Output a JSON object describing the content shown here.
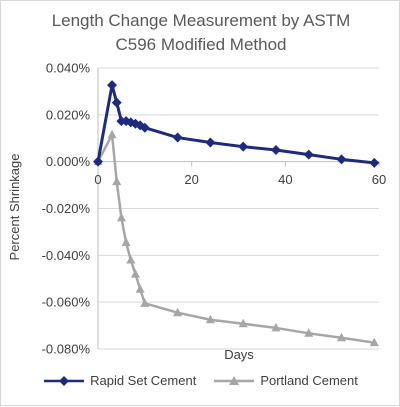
{
  "chart_data": {
    "type": "line",
    "title_lines": [
      "Length Change Measurement by ASTM",
      "C596 Modified Method"
    ],
    "xlabel": "Days",
    "ylabel": "Percent Shrinkage",
    "xlim": [
      0,
      60
    ],
    "ylim": [
      -0.08,
      0.04
    ],
    "x_ticks": [
      0,
      20,
      40,
      60
    ],
    "x_tick_labels": [
      "0",
      "20",
      "40",
      "60"
    ],
    "y_ticks": [
      0.04,
      0.02,
      0.0,
      -0.02,
      -0.04,
      -0.06,
      -0.08
    ],
    "y_tick_labels": [
      "0.040%",
      "0.020%",
      "0.000%",
      "-0.020%",
      "-0.040%",
      "-0.060%",
      "-0.080%"
    ],
    "grid": "horizontal",
    "legend_position": "bottom",
    "series": [
      {
        "name": "Rapid Set Cement",
        "color": "#1f2a7a",
        "marker": "diamond",
        "x": [
          0,
          3,
          4,
          5,
          6,
          7,
          8,
          9,
          10,
          17,
          24,
          31,
          38,
          45,
          52,
          59
        ],
        "y": [
          0.0,
          0.0327,
          0.0252,
          0.0173,
          0.0173,
          0.0168,
          0.0162,
          0.0155,
          0.0145,
          0.0103,
          0.0082,
          0.0064,
          0.005,
          0.003,
          0.001,
          -0.0005
        ]
      },
      {
        "name": "Portland Cement",
        "color": "#a6a6a6",
        "marker": "triangle",
        "x": [
          0,
          3,
          4,
          5,
          6,
          7,
          8,
          9,
          10,
          17,
          24,
          31,
          38,
          45,
          52,
          59
        ],
        "y": [
          0.0,
          0.0115,
          -0.0085,
          -0.024,
          -0.0345,
          -0.042,
          -0.048,
          -0.0545,
          -0.0605,
          -0.0645,
          -0.0675,
          -0.0692,
          -0.071,
          -0.0733,
          -0.0752,
          -0.0773
        ]
      }
    ]
  }
}
